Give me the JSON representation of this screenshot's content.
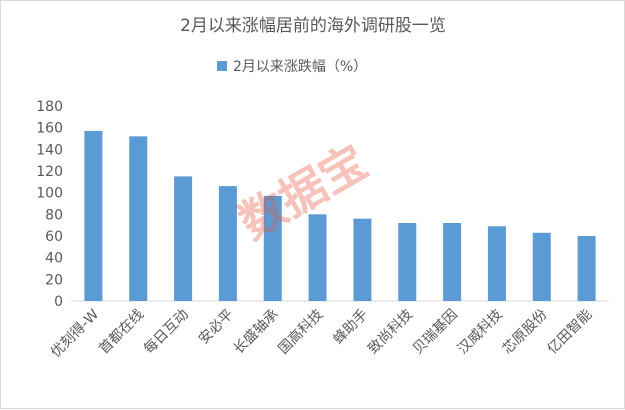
{
  "chart_data": {
    "type": "bar",
    "title": "2月以来涨幅居前的海外调研股一览",
    "categories": [
      "优刻得-W",
      "首都在线",
      "每日互动",
      "安必平",
      "长盛轴承",
      "国高科技",
      "蜂助手",
      "致尚科技",
      "贝瑞基因",
      "汉威科技",
      "芯原股份",
      "亿田智能"
    ],
    "series": [
      {
        "name": "2月以来涨跌幅（%）",
        "values": [
          157,
          152,
          115,
          106,
          97,
          80,
          76,
          72,
          72,
          69,
          63,
          60
        ]
      }
    ],
    "y_ticks": [
      "0",
      "20",
      "40",
      "60",
      "80",
      "100",
      "120",
      "140",
      "160",
      "180"
    ],
    "ylim": [
      0,
      180
    ],
    "grid": false,
    "legend_position": "top",
    "bar_color": "#5b9bd5"
  },
  "watermark": "数据宝"
}
